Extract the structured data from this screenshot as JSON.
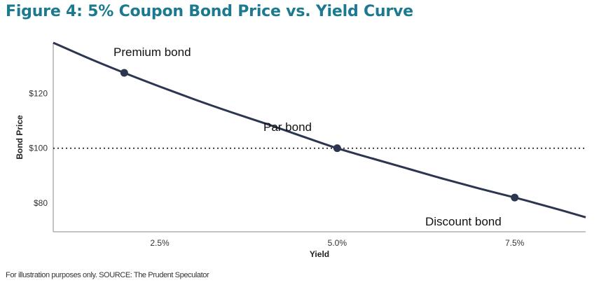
{
  "header": {
    "title": "Figure 4: 5% Coupon Bond Price vs. Yield Curve"
  },
  "footer": {
    "note": "For illustration purposes only. SOURCE: The Prudent Speculator"
  },
  "colors": {
    "title": "#1b7a8f",
    "curve": "#2c3650",
    "point": "#2c3650",
    "par_line": "#111111"
  },
  "chart_data": {
    "type": "line",
    "title": "Figure 4: 5% Coupon Bond Price vs. Yield Curve",
    "xlabel": "Yield",
    "ylabel": "Bond Price",
    "xlim": [
      1.0,
      8.5
    ],
    "ylim": [
      69.5,
      138.5
    ],
    "x_ticks": [
      {
        "value": 2.5,
        "label": "2.5%"
      },
      {
        "value": 5.0,
        "label": "5.0%"
      },
      {
        "value": 7.5,
        "label": "7.5%"
      }
    ],
    "y_ticks": [
      {
        "value": 80,
        "label": "$80"
      },
      {
        "value": 100,
        "label": "$100"
      },
      {
        "value": 120,
        "label": "$120"
      }
    ],
    "grid": false,
    "reference_line": {
      "type": "horizontal",
      "value": 100,
      "style": "dotted"
    },
    "series": [
      {
        "name": "Bond Price",
        "x": [
          1.0,
          1.5,
          2.0,
          2.5,
          3.0,
          3.5,
          4.0,
          4.5,
          5.0,
          5.5,
          6.0,
          6.5,
          7.0,
          7.5,
          8.0,
          8.5
        ],
        "y": [
          138.5,
          132.8,
          127.5,
          122.5,
          117.7,
          113.2,
          108.9,
          104.4,
          100.0,
          96.2,
          92.5,
          88.8,
          85.3,
          82.0,
          78.5,
          74.8
        ]
      }
    ],
    "points": [
      {
        "name": "premium",
        "x": 2.0,
        "y": 127.5,
        "label": "Premium bond"
      },
      {
        "name": "par",
        "x": 5.0,
        "y": 100.0,
        "label": "Par bond"
      },
      {
        "name": "discount",
        "x": 7.5,
        "y": 82.0,
        "label": "Discount bond"
      }
    ]
  }
}
